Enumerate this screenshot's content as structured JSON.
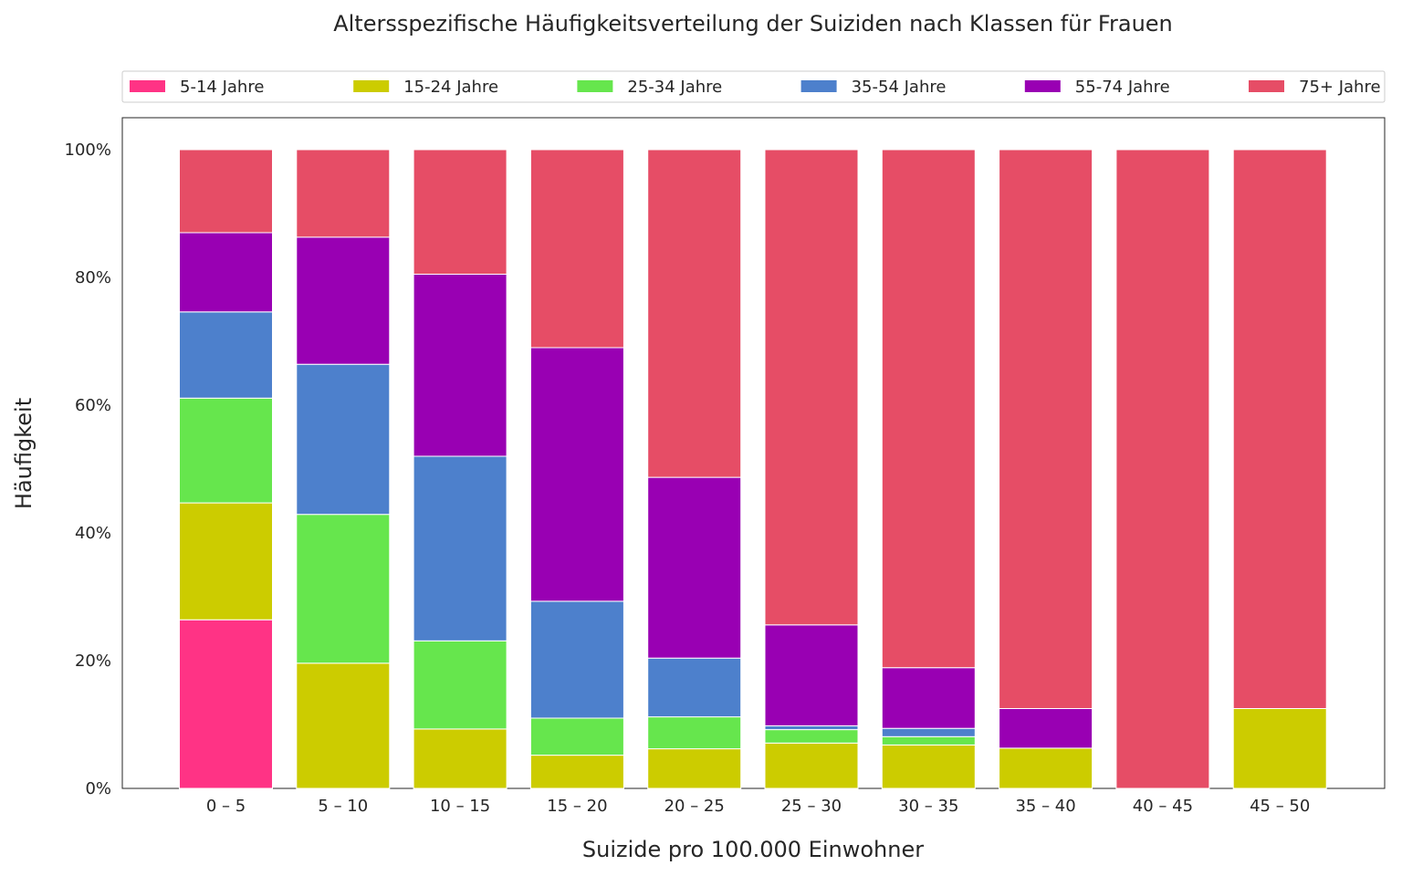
{
  "chart_data": {
    "type": "bar",
    "stacked": true,
    "normalized": true,
    "title": "Altersspezifische Häufigkeitsverteilung der Suiziden nach Klassen für Frauen",
    "xlabel": "Suizide pro 100.000 Einwohner",
    "ylabel": "Häufigkeit",
    "ylim": [
      0,
      1.05
    ],
    "yticks": [
      "0%",
      "20%",
      "40%",
      "60%",
      "80%",
      "100%"
    ],
    "ytick_values": [
      0,
      0.2,
      0.4,
      0.6,
      0.8,
      1.0
    ],
    "grid": false,
    "legend_position": "top",
    "categories": [
      "0 – 5",
      "5 – 10",
      "10 – 15",
      "15 – 20",
      "20 – 25",
      "25 – 30",
      "30 – 35",
      "35 – 40",
      "40 – 45",
      "45 – 50"
    ],
    "series": [
      {
        "name": "5-14 Jahre",
        "color": "#ff3385",
        "values": [
          0.264,
          0.0,
          0.0,
          0.0,
          0.0,
          0.0,
          0.0,
          0.0,
          0.0,
          0.0
        ]
      },
      {
        "name": "15-24 Jahre",
        "color": "#cccc00",
        "values": [
          0.183,
          0.196,
          0.093,
          0.052,
          0.062,
          0.071,
          0.068,
          0.063,
          0.0,
          0.125
        ]
      },
      {
        "name": "25-34 Jahre",
        "color": "#66e64d",
        "values": [
          0.164,
          0.233,
          0.138,
          0.058,
          0.05,
          0.021,
          0.013,
          0.0,
          0.0,
          0.0
        ]
      },
      {
        "name": "35-54 Jahre",
        "color": "#4d80cc",
        "values": [
          0.135,
          0.235,
          0.289,
          0.183,
          0.092,
          0.006,
          0.013,
          0.0,
          0.0,
          0.0
        ]
      },
      {
        "name": "55-74 Jahre",
        "color": "#9900b3",
        "values": [
          0.124,
          0.199,
          0.285,
          0.397,
          0.283,
          0.158,
          0.095,
          0.062,
          0.0,
          0.0
        ]
      },
      {
        "name": "75+ Jahre",
        "color": "#e64d66",
        "values": [
          0.13,
          0.137,
          0.195,
          0.31,
          0.513,
          0.744,
          0.811,
          0.875,
          1.0,
          0.875
        ]
      }
    ]
  }
}
